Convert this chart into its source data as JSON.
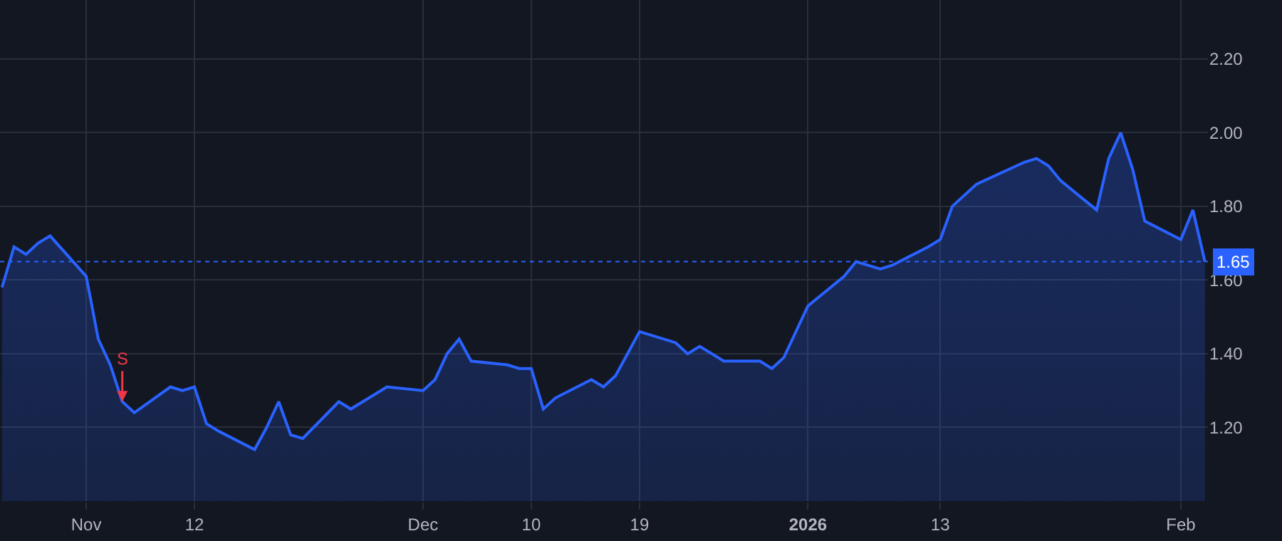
{
  "chart_data": {
    "type": "area",
    "x": [
      "2025-10-27",
      "2025-10-28",
      "2025-10-29",
      "2025-10-30",
      "2025-10-31",
      "2025-11-03",
      "2025-11-04",
      "2025-11-05",
      "2025-11-06",
      "2025-11-07",
      "2025-11-10",
      "2025-11-11",
      "2025-11-12",
      "2025-11-13",
      "2025-11-14",
      "2025-11-17",
      "2025-11-18",
      "2025-11-19",
      "2025-11-20",
      "2025-11-21",
      "2025-11-24",
      "2025-11-25",
      "2025-11-26",
      "2025-11-28",
      "2025-12-01",
      "2025-12-02",
      "2025-12-03",
      "2025-12-04",
      "2025-12-05",
      "2025-12-08",
      "2025-12-09",
      "2025-12-10",
      "2025-12-11",
      "2025-12-12",
      "2025-12-15",
      "2025-12-16",
      "2025-12-17",
      "2025-12-18",
      "2025-12-19",
      "2025-12-22",
      "2025-12-23",
      "2025-12-24",
      "2025-12-26",
      "2025-12-29",
      "2025-12-30",
      "2025-12-31",
      "2026-01-02",
      "2026-01-05",
      "2026-01-06",
      "2026-01-07",
      "2026-01-08",
      "2026-01-09",
      "2026-01-12",
      "2026-01-13",
      "2026-01-14",
      "2026-01-15",
      "2026-01-16",
      "2026-01-20",
      "2026-01-21",
      "2026-01-22",
      "2026-01-23",
      "2026-01-26",
      "2026-01-27",
      "2026-01-28",
      "2026-01-29",
      "2026-01-30",
      "2026-02-02",
      "2026-02-03",
      "2026-02-04"
    ],
    "series": [
      {
        "color": "#2962ff",
        "values": [
          1.58,
          1.69,
          1.67,
          1.7,
          1.72,
          1.61,
          1.44,
          1.37,
          1.27,
          1.24,
          1.31,
          1.3,
          1.31,
          1.21,
          1.19,
          1.14,
          1.2,
          1.27,
          1.18,
          1.17,
          1.27,
          1.25,
          1.27,
          1.31,
          1.3,
          1.33,
          1.4,
          1.44,
          1.38,
          1.37,
          1.36,
          1.36,
          1.25,
          1.28,
          1.33,
          1.31,
          1.34,
          1.4,
          1.46,
          1.43,
          1.4,
          1.42,
          1.38,
          1.38,
          1.36,
          1.39,
          1.53,
          1.61,
          1.65,
          1.64,
          1.63,
          1.64,
          1.69,
          1.71,
          1.8,
          1.83,
          1.86,
          1.92,
          1.93,
          1.91,
          1.87,
          1.79,
          1.93,
          2.0,
          1.9,
          1.76,
          1.71,
          1.79,
          1.65
        ]
      }
    ],
    "xlim": [
      "2025-10-26T20:00",
      "2026-02-04T06:00"
    ],
    "xticks": [
      {
        "value": "2025-11-03",
        "label": "Nov"
      },
      {
        "value": "2025-11-12",
        "label": "12"
      },
      {
        "value": "2025-12-01",
        "label": "Dec"
      },
      {
        "value": "2025-12-10",
        "label": "10"
      },
      {
        "value": "2025-12-19",
        "label": "19"
      },
      {
        "value": "2026-01-02",
        "label": "2026"
      },
      {
        "value": "2026-01-13",
        "label": "13"
      },
      {
        "value": "2026-02-02",
        "label": "Feb"
      }
    ],
    "ylim": [
      1.0,
      2.36
    ],
    "yticks": [
      {
        "value": 1.2,
        "label": "1.20"
      },
      {
        "value": 1.4,
        "label": "1.40"
      },
      {
        "value": 1.6,
        "label": "1.60"
      },
      {
        "value": 1.8,
        "label": "1.80"
      },
      {
        "value": 2.0,
        "label": "2.00"
      },
      {
        "value": 2.2,
        "label": "2.20"
      }
    ],
    "grid": true,
    "legend": false,
    "ref_lines": [
      {
        "axis": "y",
        "value": 1.65,
        "label": "1.65",
        "color": "#2962ff",
        "line_style": "dotted"
      }
    ],
    "annotations": [
      {
        "text": "S",
        "x": "2025-11-06",
        "y": 1.27
      }
    ]
  }
}
